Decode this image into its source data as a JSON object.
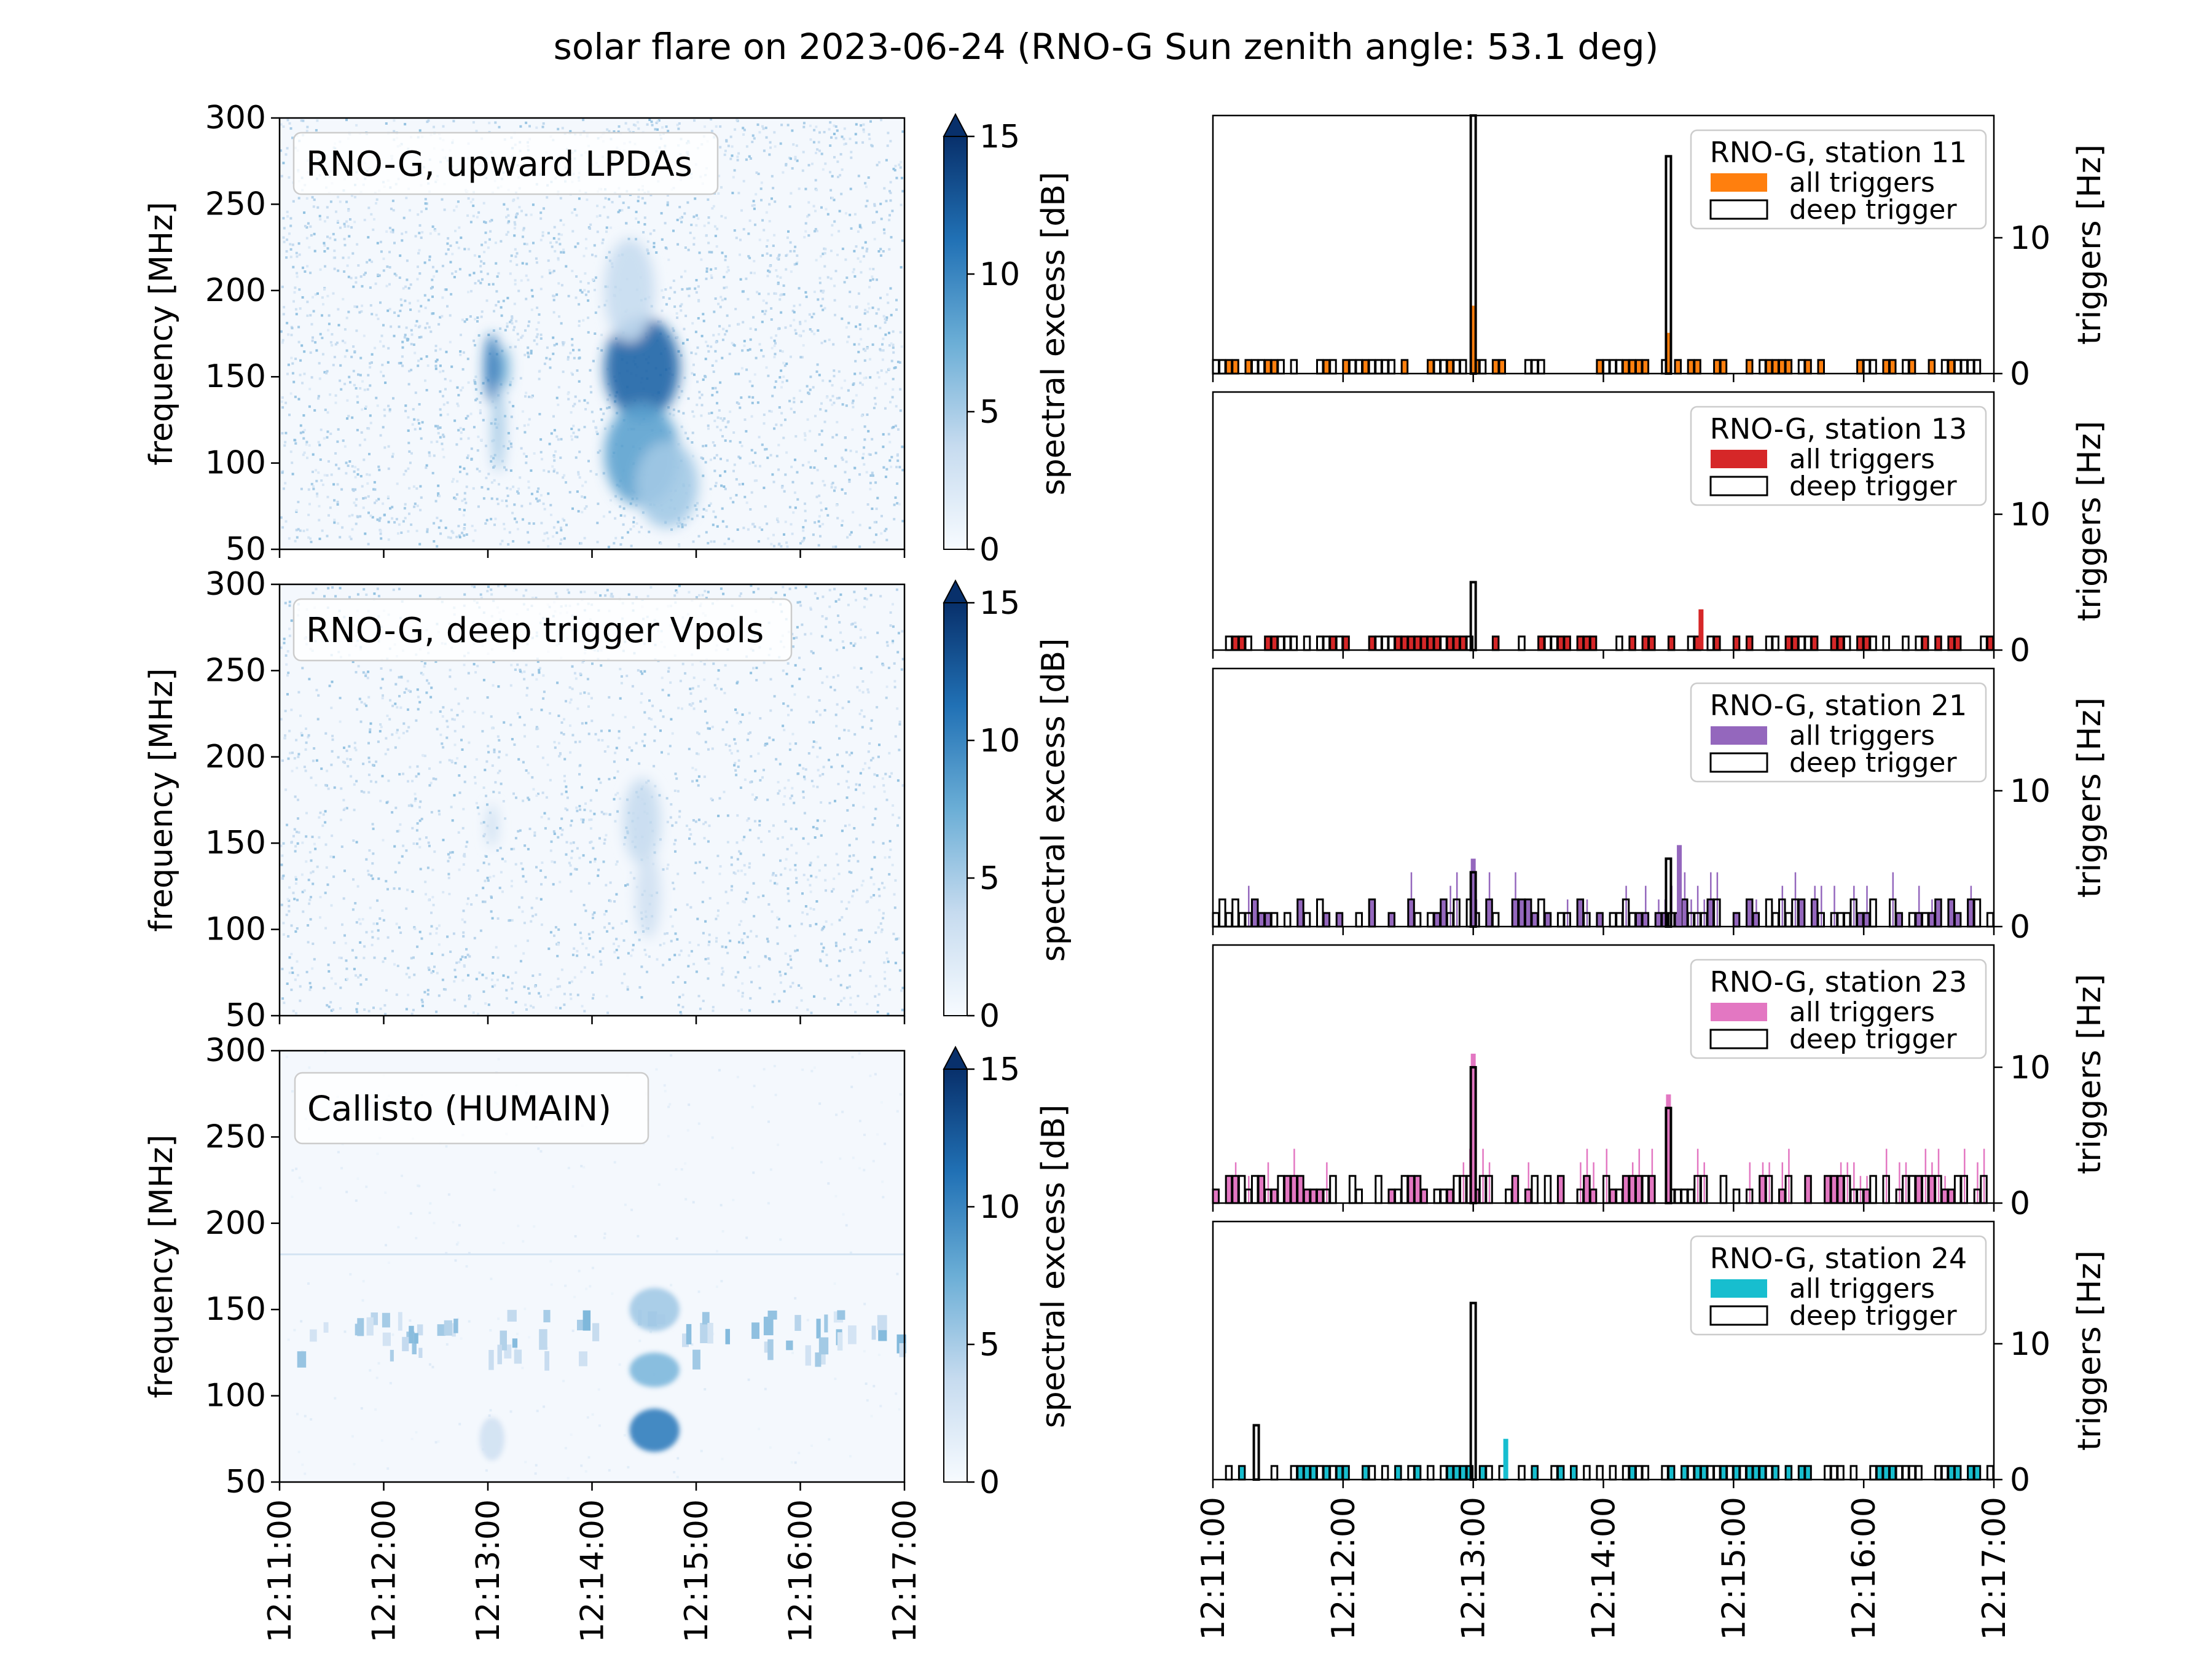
{
  "figure": {
    "title": "solar flare on 2023-06-24 (RNO-G Sun zenith angle: 53.1 deg)"
  },
  "time_ticks": [
    "12:11:00",
    "12:12:00",
    "12:13:00",
    "12:14:00",
    "12:15:00",
    "12:16:00",
    "12:17:00"
  ],
  "chart_data": [
    {
      "type": "heatmap",
      "label": "RNO-G, upward LPDAs",
      "xlabel": "",
      "ylabel": "frequency [MHz]",
      "ylim": [
        50,
        300
      ],
      "y_ticks": [
        50,
        100,
        150,
        200,
        250,
        300
      ],
      "x_ticks": [
        "12:11:00",
        "12:12:00",
        "12:13:00",
        "12:14:00",
        "12:15:00",
        "12:16:00",
        "12:17:00"
      ],
      "colorbar": {
        "label": "spectral excess [dB]",
        "range": [
          0,
          15
        ],
        "ticks": [
          0,
          5,
          10,
          15
        ],
        "extend": "max"
      },
      "colormap": [
        "#f7fbff",
        "#08306b"
      ]
    },
    {
      "type": "heatmap",
      "label": "RNO-G, deep trigger Vpols",
      "xlabel": "",
      "ylabel": "frequency [MHz]",
      "ylim": [
        50,
        300
      ],
      "y_ticks": [
        50,
        100,
        150,
        200,
        250,
        300
      ],
      "x_ticks": [
        "12:11:00",
        "12:12:00",
        "12:13:00",
        "12:14:00",
        "12:15:00",
        "12:16:00",
        "12:17:00"
      ],
      "colorbar": {
        "label": "spectral excess [dB]",
        "range": [
          0,
          15
        ],
        "ticks": [
          0,
          5,
          10,
          15
        ],
        "extend": "max"
      },
      "colormap": [
        "#f7fbff",
        "#08306b"
      ]
    },
    {
      "type": "heatmap",
      "label": "Callisto (HUMAIN)",
      "xlabel": "",
      "ylabel": "frequency [MHz]",
      "ylim": [
        50,
        300
      ],
      "y_ticks": [
        50,
        100,
        150,
        200,
        250,
        300
      ],
      "x_ticks": [
        "12:11:00",
        "12:12:00",
        "12:13:00",
        "12:14:00",
        "12:15:00",
        "12:16:00",
        "12:17:00"
      ],
      "colorbar": {
        "label": "spectral excess [dB]",
        "range": [
          0,
          15
        ],
        "ticks": [
          0,
          5,
          10,
          15
        ],
        "extend": "max"
      },
      "colormap": [
        "#f7fbff",
        "#08306b"
      ]
    },
    {
      "type": "bar",
      "legend_title": "RNO-G, station 11",
      "series": [
        {
          "name": "all triggers",
          "color": "#ff7f0e",
          "peaks": [
            {
              "t": "12:13:00",
              "value": 5
            },
            {
              "t": "12:14:30",
              "value": 3
            }
          ]
        },
        {
          "name": "deep trigger",
          "color": "#000000",
          "peaks": [
            {
              "t": "12:13:00",
              "value": 19
            },
            {
              "t": "12:14:30",
              "value": 16
            }
          ]
        }
      ],
      "ylabel": "triggers [Hz]",
      "ylim": [
        0,
        19
      ],
      "y_ticks": [
        0,
        10
      ],
      "legend_position": "upper right"
    },
    {
      "type": "bar",
      "legend_title": "RNO-G, station 13",
      "series": [
        {
          "name": "all triggers",
          "color": "#d62728",
          "peaks": [
            {
              "t": "12:14:45",
              "value": 3
            }
          ]
        },
        {
          "name": "deep trigger",
          "color": "#000000",
          "peaks": [
            {
              "t": "12:13:00",
              "value": 5
            }
          ]
        }
      ],
      "ylabel": "triggers [Hz]",
      "ylim": [
        0,
        19
      ],
      "y_ticks": [
        0,
        10
      ],
      "legend_position": "upper right"
    },
    {
      "type": "bar",
      "legend_title": "RNO-G, station 21",
      "series": [
        {
          "name": "all triggers",
          "color": "#9467bd",
          "peaks": [
            {
              "t": "12:14:35",
              "value": 6
            },
            {
              "t": "12:13:00",
              "value": 5
            }
          ]
        },
        {
          "name": "deep trigger",
          "color": "#000000",
          "peaks": [
            {
              "t": "12:14:30",
              "value": 5
            },
            {
              "t": "12:13:00",
              "value": 4
            }
          ]
        }
      ],
      "ylabel": "triggers [Hz]",
      "ylim": [
        0,
        19
      ],
      "y_ticks": [
        0,
        10
      ],
      "legend_position": "upper right"
    },
    {
      "type": "bar",
      "legend_title": "RNO-G, station 23",
      "series": [
        {
          "name": "all triggers",
          "color": "#e377c2",
          "peaks": [
            {
              "t": "12:13:00",
              "value": 11
            },
            {
              "t": "12:14:30",
              "value": 8
            }
          ]
        },
        {
          "name": "deep trigger",
          "color": "#000000",
          "peaks": [
            {
              "t": "12:13:00",
              "value": 10
            },
            {
              "t": "12:14:30",
              "value": 7
            }
          ]
        }
      ],
      "ylabel": "triggers [Hz]",
      "ylim": [
        0,
        19
      ],
      "y_ticks": [
        0,
        10
      ],
      "legend_position": "upper right"
    },
    {
      "type": "bar",
      "legend_title": "RNO-G, station 24",
      "series": [
        {
          "name": "all triggers",
          "color": "#17becf",
          "peaks": [
            {
              "t": "12:13:15",
              "value": 3
            }
          ]
        },
        {
          "name": "deep trigger",
          "color": "#000000",
          "peaks": [
            {
              "t": "12:13:00",
              "value": 13
            },
            {
              "t": "12:11:20",
              "value": 4
            }
          ]
        }
      ],
      "ylabel": "triggers [Hz]",
      "ylim": [
        0,
        19
      ],
      "y_ticks": [
        0,
        10
      ],
      "legend_position": "upper right"
    }
  ]
}
